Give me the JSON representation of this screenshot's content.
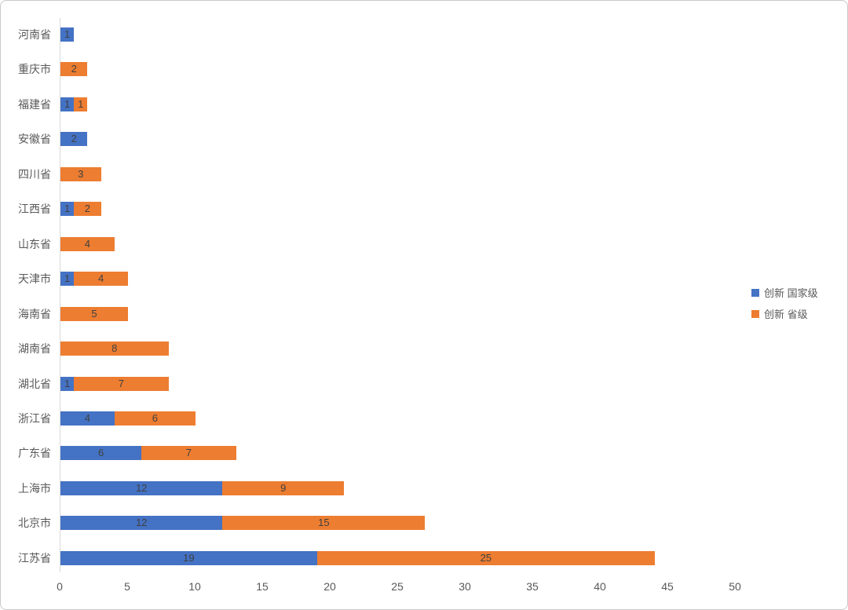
{
  "chart_data": {
    "type": "bar",
    "orientation": "horizontal",
    "stacked": true,
    "title": "",
    "xlabel": "",
    "ylabel": "",
    "categories": [
      "河南省",
      "重庆市",
      "福建省",
      "安徽省",
      "四川省",
      "江西省",
      "山东省",
      "天津市",
      "海南省",
      "湖南省",
      "湖北省",
      "浙江省",
      "广东省",
      "上海市",
      "北京市",
      "江苏省"
    ],
    "series": [
      {
        "name": "创新 国家级",
        "color": "#4472C4",
        "values": [
          1,
          0,
          1,
          2,
          0,
          1,
          0,
          1,
          0,
          0,
          1,
          4,
          6,
          12,
          12,
          19
        ]
      },
      {
        "name": "创新 省级",
        "color": "#ED7D31",
        "values": [
          0,
          2,
          1,
          0,
          3,
          2,
          4,
          4,
          5,
          8,
          7,
          6,
          7,
          9,
          15,
          25
        ]
      }
    ],
    "xlim": [
      0,
      50
    ],
    "x_ticks": [
      0,
      5,
      10,
      15,
      20,
      25,
      30,
      35,
      40,
      45,
      50
    ],
    "grid": false,
    "legend_position": "right-middle",
    "value_labels": "inside-center"
  },
  "colors": {
    "series_national": "#4472C4",
    "series_provincial": "#ED7D31",
    "axis_line": "#D9D9D9",
    "category_label_text": "#595959",
    "tick_label_text": "#595959",
    "value_label_text": "#404040",
    "background": "#FFFFFF",
    "frame_border": "#C9C9C9"
  }
}
